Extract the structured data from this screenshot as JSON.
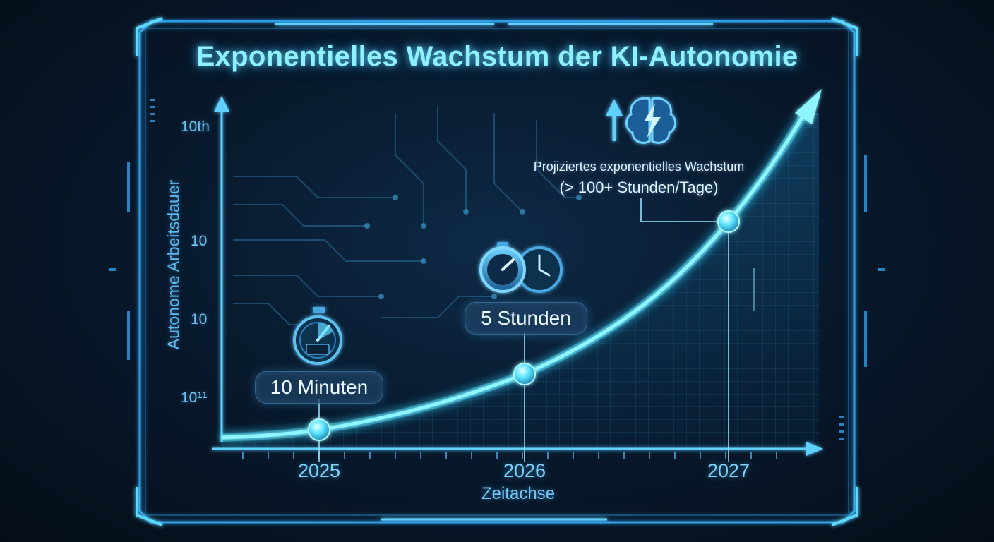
{
  "chart_data": {
    "type": "line",
    "title": "Exponentielles Wachstum der KI-Autonomie",
    "xlabel": "Zeitachse",
    "ylabel": "Autonome Arbeitsdauer",
    "x_ticks": [
      "2025",
      "2026",
      "2027"
    ],
    "y_ticks": [
      "10th",
      "10",
      "10",
      "10¹¹"
    ],
    "y_scale": "log",
    "grid": true,
    "points": [
      {
        "x": "2025",
        "label": "10 Minuten"
      },
      {
        "x": "2026",
        "label": "5 Stunden"
      },
      {
        "x": "2027",
        "label": "Projiziertes exponentielles Wachstum",
        "sublabel": "(> 100+ Stunden/Tage)"
      }
    ]
  },
  "colors": {
    "accent": "#6ff0ff",
    "frame": "#2f9fe6",
    "text": "#7fd3fb"
  },
  "icons": [
    "stopwatch-icon",
    "clock-icon",
    "up-arrow-icon",
    "brain-lightning-icon"
  ]
}
